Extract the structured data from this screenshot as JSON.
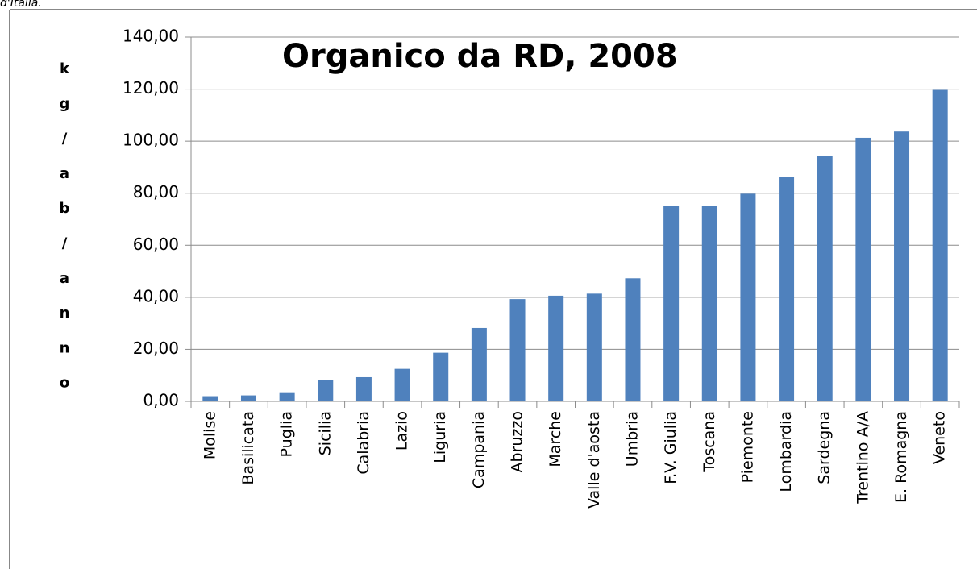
{
  "page_text": "d'Italia.",
  "chart_data": {
    "type": "bar",
    "title": "Organico da RD, 2008",
    "y_label": "kg/ab/anno",
    "categories": [
      "Molise",
      "Basilicata",
      "Puglia",
      "Sicilia",
      "Calabria",
      "Lazio",
      "Liguria",
      "Campania",
      "Abruzzo",
      "Marche",
      "Valle d'aosta",
      "Umbria",
      "F.V. Giulia",
      "Toscana",
      "Piemonte",
      "Lombardia",
      "Sardegna",
      "Trentino A/A",
      "E. Romagna",
      "Veneto"
    ],
    "values": [
      2.0,
      2.3,
      3.2,
      8.2,
      9.3,
      12.5,
      18.7,
      28.2,
      39.3,
      40.6,
      41.4,
      47.3,
      75.2,
      75.2,
      79.8,
      86.3,
      94.3,
      101.3,
      103.7,
      119.7
    ],
    "color": "#4f81bd",
    "ylim": [
      0,
      140
    ],
    "yticks": [
      {
        "value": 0,
        "label": "0,00"
      },
      {
        "value": 20,
        "label": "20,00"
      },
      {
        "value": 40,
        "label": "40,00"
      },
      {
        "value": 60,
        "label": "60,00"
      },
      {
        "value": 80,
        "label": "80,00"
      },
      {
        "value": 100,
        "label": "100,00"
      },
      {
        "value": 120,
        "label": "120,00"
      },
      {
        "value": 140,
        "label": "140,00"
      }
    ],
    "grid": true
  }
}
